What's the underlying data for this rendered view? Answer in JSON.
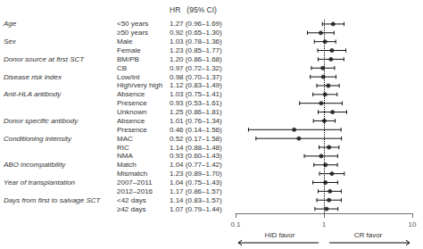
{
  "chart_data": {
    "type": "forest",
    "header": "HR   (95% CI)",
    "groups": [
      "Age",
      null,
      "Sex",
      null,
      "Donor source at first SCT",
      null,
      "Disease risk index",
      null,
      "Anti-HLA antibody",
      null,
      null,
      "Donor specific antibody",
      null,
      "Conditioning intensity",
      null,
      null,
      "ABO incompatibility",
      null,
      "Year of transplantation",
      null,
      "Days from first to salvage SCT",
      null
    ],
    "categories": [
      "<50 years",
      "≥50 years",
      "Male",
      "Female",
      "BM/PB",
      "CB",
      "Low/int",
      "High/very high",
      "Absence",
      "Presence",
      "Unknown",
      "Absence",
      "Presence",
      "MAC",
      "RIC",
      "NMA",
      "Match",
      "Mismatch",
      "2007–2011",
      "2012–2016",
      "<42 days",
      "≥42 days"
    ],
    "values": [
      1.27,
      0.92,
      1.03,
      1.23,
      1.2,
      0.97,
      0.98,
      1.12,
      1.03,
      0.93,
      1.25,
      1.01,
      0.46,
      0.52,
      1.14,
      0.93,
      1.04,
      1.23,
      1.04,
      1.17,
      1.14,
      1.07
    ],
    "ci_low": [
      0.96,
      0.65,
      0.78,
      0.85,
      0.86,
      0.72,
      0.7,
      0.83,
      0.75,
      0.53,
      0.86,
      0.76,
      0.14,
      0.17,
      0.88,
      0.6,
      0.77,
      0.89,
      0.75,
      0.86,
      0.83,
      0.79
    ],
    "ci_high": [
      1.69,
      1.3,
      1.36,
      1.77,
      1.68,
      1.32,
      1.37,
      1.49,
      1.41,
      1.61,
      1.81,
      1.34,
      1.56,
      1.58,
      1.48,
      1.43,
      1.42,
      1.7,
      1.43,
      1.57,
      1.57,
      1.44
    ],
    "value_labels": [
      "1.27 (0.96–1.69)",
      "0.92 (0.65–1.30)",
      "1.03 (0.78–1.36)",
      "1.23 (0.85–1.77)",
      "1.20 (0.86–1.68)",
      "0.97 (0.72–1.32)",
      "0.98 (0.70–1.37)",
      "1.12 (0.83–1.49)",
      "1.03 (0.75–1.41)",
      "0.93 (0.53–1.61)",
      "1.25 (0.86–1.81)",
      "1.01 (0.76–1.34)",
      "0.46 (0.14–1.56)",
      "0.52 (0.17–1.58)",
      "1.14 (0.88–1.48)",
      "0.93 (0.60–1.43)",
      "1.04 (0.77–1.42)",
      "1.23 (0.89–1.70)",
      "1.04 (0.75–1.43)",
      "1.17 (0.86–1.57)",
      "1.14 (0.83–1.57)",
      "1.07 (0.79–1.44)"
    ],
    "xlim": [
      0.1,
      10
    ],
    "xticks": [
      0.1,
      1,
      10
    ],
    "log": "x",
    "reference_line": 1,
    "xlabel_left": "HID favor",
    "xlabel_right": "CR favor",
    "color": "#111111",
    "grid": false
  }
}
